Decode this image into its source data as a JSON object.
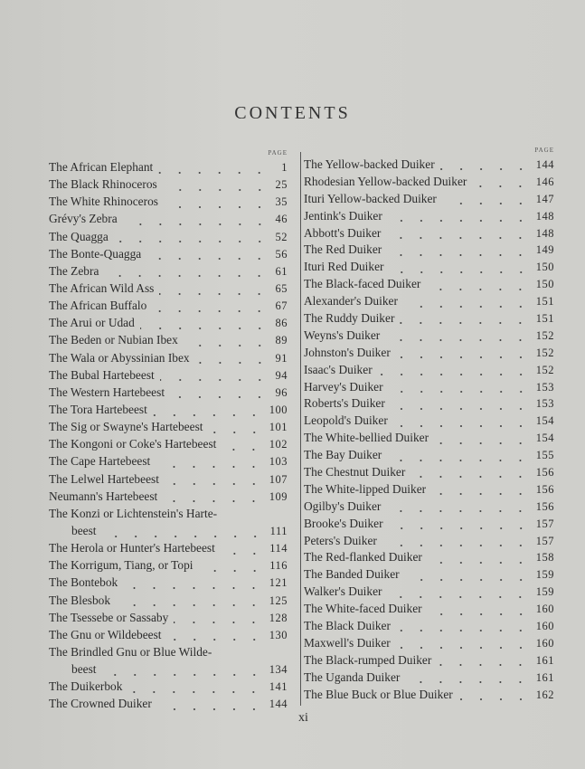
{
  "title": "CONTENTS",
  "page_header": "PAGE",
  "folio": "xi",
  "left_column": [
    {
      "text": "The African Elephant",
      "page": "1"
    },
    {
      "text": "The Black Rhinoceros",
      "page": "25"
    },
    {
      "text": "The White Rhinoceros",
      "page": "35"
    },
    {
      "text": "Grévy's Zebra",
      "page": "46"
    },
    {
      "text": "The Quagga",
      "page": "52"
    },
    {
      "text": "The Bonte-Quagga",
      "page": "56"
    },
    {
      "text": "The Zebra",
      "page": "61"
    },
    {
      "text": "The African Wild Ass",
      "page": "65"
    },
    {
      "text": "The African Buffalo",
      "page": "67"
    },
    {
      "text": "The Arui or Udad",
      "page": "86"
    },
    {
      "text": "The Beden or Nubian Ibex",
      "page": "89"
    },
    {
      "text": "The Wala or Abyssinian Ibex",
      "page": "91"
    },
    {
      "text": "The Bubal Hartebeest",
      "page": "94"
    },
    {
      "text": "The Western Hartebeest",
      "page": "96"
    },
    {
      "text": "The Tora Hartebeest",
      "page": "100"
    },
    {
      "text": "The Sig or Swayne's Hartebeest",
      "page": "101"
    },
    {
      "text": "The Kongoni or Coke's Hartebeest",
      "page": "102"
    },
    {
      "text": "The Cape Hartebeest",
      "page": "103"
    },
    {
      "text": "The Lelwel Hartebeest",
      "page": "107"
    },
    {
      "text": "Neumann's Hartebeest",
      "page": "109"
    },
    {
      "text": "The Konzi or Lichtenstein's Harte-",
      "cont": "beest",
      "page": "111"
    },
    {
      "text": "The Herola or Hunter's Hartebeest",
      "page": "114"
    },
    {
      "text": "The Korrigum, Tiang, or Topi",
      "page": "116"
    },
    {
      "text": "The Bontebok",
      "page": "121"
    },
    {
      "text": "The Blesbok",
      "page": "125"
    },
    {
      "text": "The Tsessebe or Sassaby",
      "page": "128"
    },
    {
      "text": "The Gnu or Wildebeest",
      "page": "130"
    },
    {
      "text": "The Brindled Gnu or Blue Wilde-",
      "cont": "beest",
      "page": "134"
    },
    {
      "text": "The Duikerbok",
      "page": "141"
    },
    {
      "text": "The Crowned Duiker",
      "page": "144"
    }
  ],
  "right_column": [
    {
      "text": "The Yellow-backed Duiker",
      "page": "144"
    },
    {
      "text": "Rhodesian Yellow-backed Duiker",
      "page": "146"
    },
    {
      "text": "Ituri Yellow-backed Duiker",
      "page": "147"
    },
    {
      "text": "Jentink's Duiker",
      "page": "148"
    },
    {
      "text": "Abbott's Duiker",
      "page": "148"
    },
    {
      "text": "The Red Duiker",
      "page": "149"
    },
    {
      "text": "Ituri Red Duiker",
      "page": "150"
    },
    {
      "text": "The Black-faced Duiker",
      "page": "150"
    },
    {
      "text": "Alexander's Duiker",
      "page": "151"
    },
    {
      "text": "The Ruddy Duiker",
      "page": "151"
    },
    {
      "text": "Weyns's Duiker",
      "page": "152"
    },
    {
      "text": "Johnston's Duiker",
      "page": "152"
    },
    {
      "text": "Isaac's Duiker",
      "page": "152"
    },
    {
      "text": "Harvey's Duiker",
      "page": "153"
    },
    {
      "text": "Roberts's Duiker",
      "page": "153"
    },
    {
      "text": "Leopold's Duiker",
      "page": "154"
    },
    {
      "text": "The White-bellied Duiker",
      "page": "154"
    },
    {
      "text": "The Bay Duiker",
      "page": "155"
    },
    {
      "text": "The Chestnut Duiker",
      "page": "156"
    },
    {
      "text": "The White-lipped Duiker",
      "page": "156"
    },
    {
      "text": "Ogilby's Duiker",
      "page": "156"
    },
    {
      "text": "Brooke's Duiker",
      "page": "157"
    },
    {
      "text": "Peters's Duiker",
      "page": "157"
    },
    {
      "text": "The Red-flanked Duiker",
      "page": "158"
    },
    {
      "text": "The Banded Duiker",
      "page": "159"
    },
    {
      "text": "Walker's Duiker",
      "page": "159"
    },
    {
      "text": "The White-faced Duiker",
      "page": "160"
    },
    {
      "text": "The Black Duiker",
      "page": "160"
    },
    {
      "text": "Maxwell's Duiker",
      "page": "160"
    },
    {
      "text": "The Black-rumped Duiker",
      "page": "161"
    },
    {
      "text": "The Uganda Duiker",
      "page": "161"
    },
    {
      "text": "The Blue Buck or Blue Duiker",
      "page": "162"
    }
  ]
}
